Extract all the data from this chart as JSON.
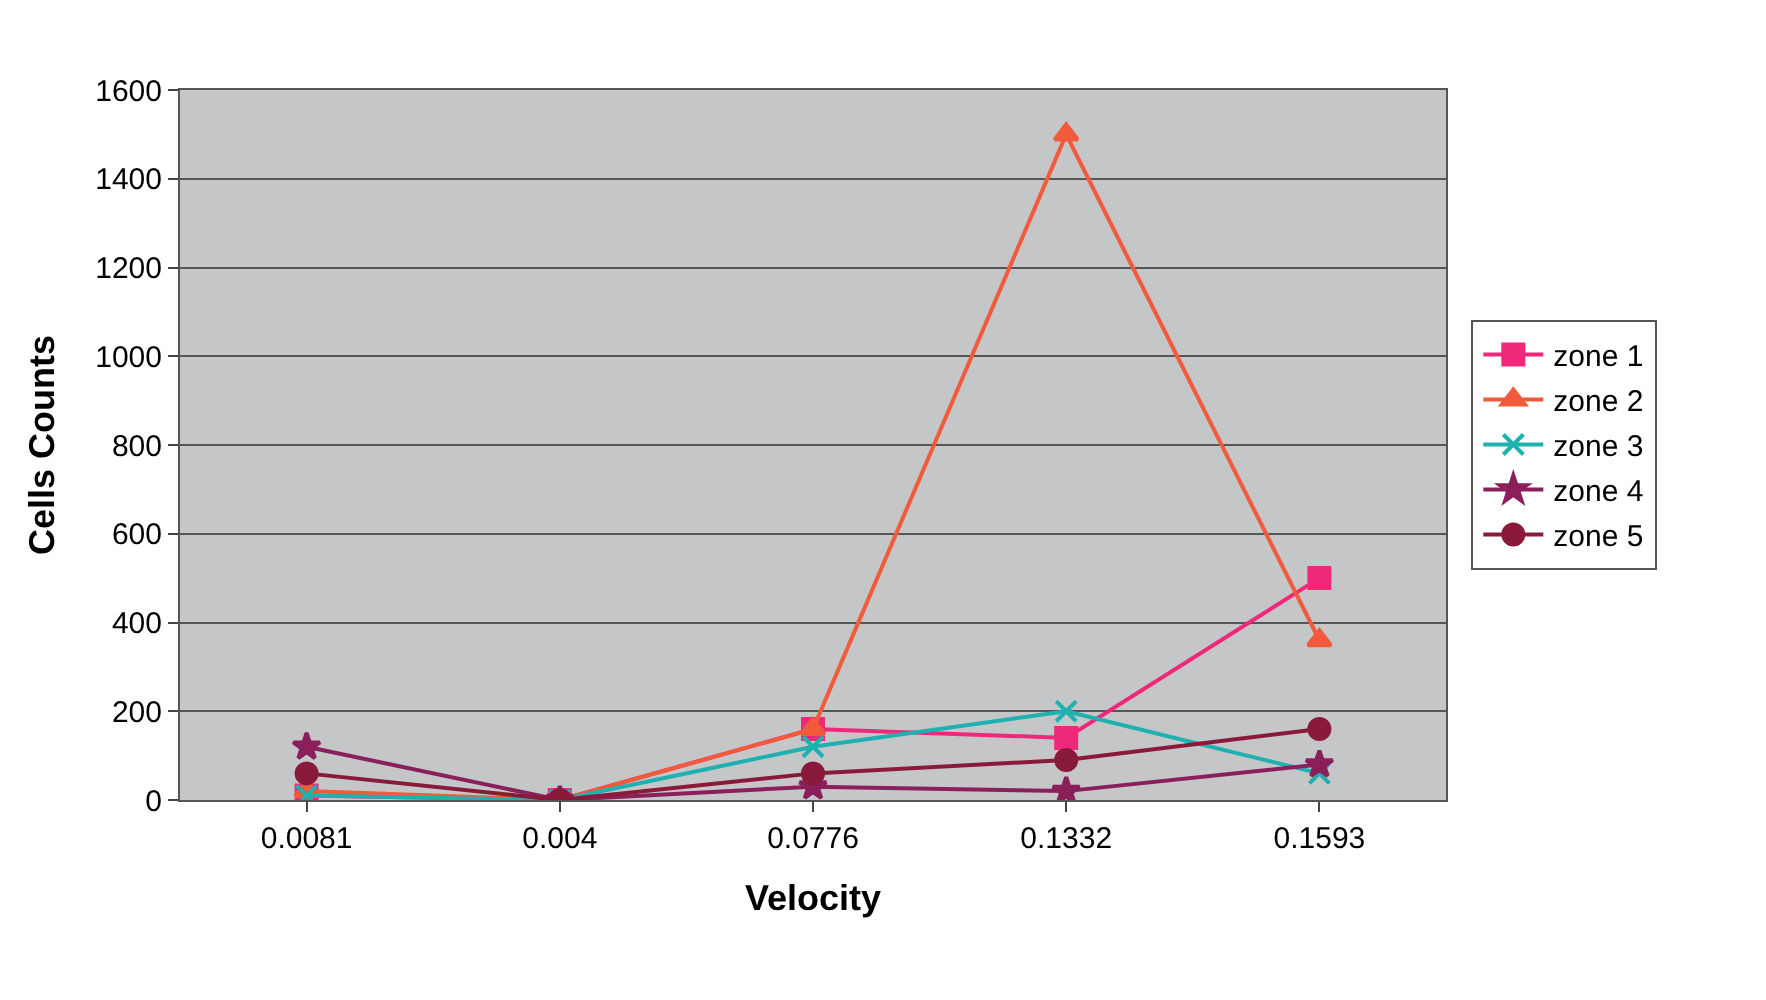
{
  "chart_data": {
    "type": "line",
    "xlabel": "Velocity",
    "ylabel": "Cells Counts",
    "categories": [
      "0.0081",
      "0.004",
      "0.0776",
      "0.1332",
      "0.1593"
    ],
    "ylim": [
      0,
      1600
    ],
    "yticks": [
      0,
      200,
      400,
      600,
      800,
      1000,
      1200,
      1400,
      1600
    ],
    "grid": "y",
    "legend": "right",
    "series": [
      {
        "name": "zone 1",
        "color": "#f0287a",
        "marker": "square",
        "values": [
          10,
          0,
          160,
          140,
          500
        ]
      },
      {
        "name": "zone 2",
        "color": "#f25a3c",
        "marker": "triangle",
        "values": [
          20,
          0,
          160,
          1500,
          360
        ]
      },
      {
        "name": "zone 3",
        "color": "#1fb0b0",
        "marker": "cross",
        "values": [
          10,
          0,
          120,
          200,
          60
        ]
      },
      {
        "name": "zone 4",
        "color": "#8a1f5c",
        "marker": "star",
        "values": [
          120,
          0,
          30,
          20,
          80
        ]
      },
      {
        "name": "zone 5",
        "color": "#8a1a3a",
        "marker": "circle",
        "values": [
          60,
          0,
          60,
          90,
          160
        ]
      }
    ]
  }
}
